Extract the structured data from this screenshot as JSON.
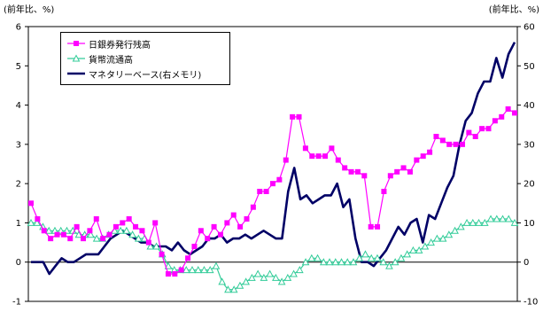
{
  "chart_data": {
    "type": "line",
    "left_axis_unit": "(前年比、%)",
    "right_axis_unit": "(前年比、%)",
    "ylim_left": [
      -1,
      6
    ],
    "yticks_left": [
      "-1",
      "0",
      "1",
      "2",
      "3",
      "4",
      "5",
      "6"
    ],
    "ylim_right": [
      -10,
      60
    ],
    "yticks_right": [
      "-10",
      "0",
      "10",
      "20",
      "30",
      "40",
      "50",
      "60"
    ],
    "grid": false,
    "legend_position": "top-left",
    "series": [
      {
        "name": "日銀券発行残高",
        "axis": "left",
        "color": "#ff00ff",
        "marker": "square",
        "values": [
          1.5,
          1.1,
          0.8,
          0.6,
          0.7,
          0.7,
          0.6,
          0.9,
          0.6,
          0.8,
          1.1,
          0.6,
          0.7,
          0.9,
          1.0,
          1.1,
          0.9,
          0.8,
          0.5,
          1.0,
          0.2,
          -0.3,
          -0.3,
          -0.2,
          0.1,
          0.4,
          0.8,
          0.6,
          0.9,
          0.7,
          1.0,
          1.2,
          0.9,
          1.1,
          1.4,
          1.8,
          1.8,
          2.0,
          2.1,
          2.6,
          3.7,
          3.7,
          2.9,
          2.7,
          2.7,
          2.7,
          2.9,
          2.6,
          2.4,
          2.3,
          2.3,
          2.2,
          0.9,
          0.9,
          1.8,
          2.2,
          2.3,
          2.4,
          2.3,
          2.6,
          2.7,
          2.8,
          3.2,
          3.1,
          3.0,
          3.0,
          3.0,
          3.3,
          3.2,
          3.4,
          3.4,
          3.6,
          3.7,
          3.9,
          3.8
        ]
      },
      {
        "name": "貨幣流通高",
        "axis": "left",
        "color": "#33cc99",
        "marker": "triangle",
        "values": [
          1.0,
          1.0,
          0.9,
          0.8,
          0.8,
          0.8,
          0.8,
          0.8,
          0.7,
          0.7,
          0.7,
          0.6,
          0.6,
          0.7,
          0.8,
          0.8,
          0.8,
          0.7,
          0.6,
          0.6,
          0.4,
          0.4,
          0.2,
          -0.1,
          -0.2,
          -0.2,
          -0.2,
          -0.2,
          -0.2,
          -0.2,
          -0.2,
          -0.1,
          -0.5,
          -0.7,
          -0.7,
          -0.6,
          -0.5,
          -0.4,
          -0.3,
          -0.4,
          -0.3,
          -0.4,
          -0.5,
          -0.4,
          -0.3,
          -0.2,
          0.0,
          0.1,
          0.1,
          0.0,
          0.0,
          0.0,
          0.0,
          0.0,
          0.0,
          0.1,
          0.2,
          0.1,
          0.1,
          0.0,
          -0.1,
          0.0,
          0.1,
          0.2,
          0.3,
          0.3,
          0.4,
          0.5,
          0.6,
          0.6,
          0.7,
          0.8,
          0.9,
          1.0,
          1.0,
          1.0,
          1.0,
          1.1,
          1.1,
          1.1,
          1.1,
          1.0
        ]
      },
      {
        "name": "マネタリーベース(右メモリ)",
        "axis": "right",
        "color": "#000066",
        "marker": "none",
        "values": [
          0,
          0,
          0,
          -3,
          -1,
          1,
          0,
          0,
          1,
          2,
          2,
          2,
          4,
          6,
          7,
          8,
          7,
          6,
          5,
          5,
          4,
          4,
          4,
          3,
          5,
          3,
          2,
          3,
          4,
          6,
          6,
          7,
          5,
          6,
          6,
          7,
          6,
          7,
          8,
          7,
          6,
          6,
          18,
          24,
          16,
          17,
          15,
          16,
          17,
          17,
          20,
          14,
          16,
          6,
          0,
          0,
          -1,
          1,
          3,
          6,
          9,
          7,
          10,
          11,
          5,
          12,
          11,
          15,
          19,
          22,
          30,
          36,
          38,
          43,
          46,
          46,
          52,
          47,
          53,
          56
        ]
      }
    ]
  }
}
